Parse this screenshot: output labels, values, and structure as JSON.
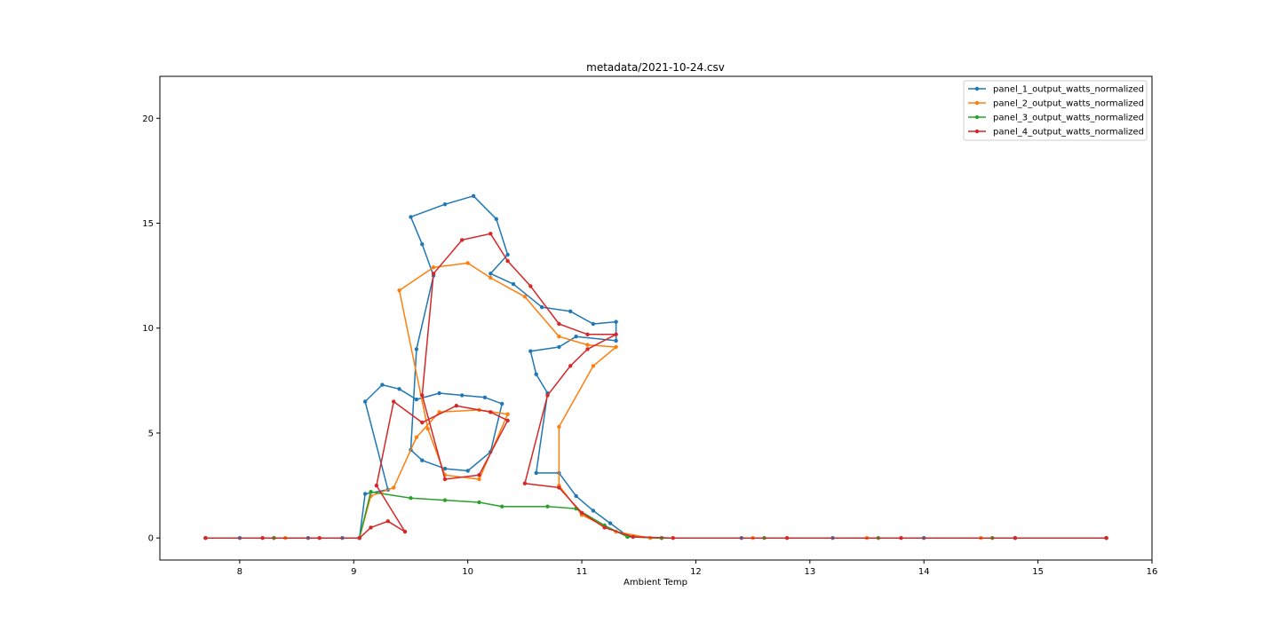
{
  "chart_data": {
    "type": "line",
    "title": "metadata/2021-10-24.csv",
    "xlabel": "Ambient Temp",
    "ylabel": "",
    "xlim": [
      7.3,
      16.0
    ],
    "ylim": [
      -1.05,
      22.0
    ],
    "xticks": [
      8,
      9,
      10,
      11,
      12,
      13,
      14,
      15,
      16
    ],
    "yticks": [
      0,
      5,
      10,
      15,
      20
    ],
    "grid": false,
    "legend_position": "top-right",
    "marker": "circle",
    "series": [
      {
        "name": "panel_1_output_watts_normalized",
        "color": "#1f77b4",
        "points": [
          [
            7.7,
            0
          ],
          [
            8.0,
            0
          ],
          [
            8.3,
            0
          ],
          [
            8.6,
            0
          ],
          [
            8.9,
            0
          ],
          [
            9.05,
            0
          ],
          [
            9.1,
            2.1
          ],
          [
            9.3,
            2.3
          ],
          [
            9.1,
            6.5
          ],
          [
            9.25,
            7.3
          ],
          [
            9.4,
            7.1
          ],
          [
            9.55,
            6.6
          ],
          [
            9.75,
            6.9
          ],
          [
            9.95,
            6.8
          ],
          [
            10.15,
            6.7
          ],
          [
            10.3,
            6.4
          ],
          [
            10.2,
            4.1
          ],
          [
            10.0,
            3.2
          ],
          [
            9.8,
            3.3
          ],
          [
            9.6,
            3.7
          ],
          [
            9.5,
            4.2
          ],
          [
            9.55,
            9.0
          ],
          [
            9.7,
            12.5
          ],
          [
            9.6,
            14.0
          ],
          [
            9.5,
            15.3
          ],
          [
            9.8,
            15.9
          ],
          [
            10.05,
            16.3
          ],
          [
            10.25,
            15.2
          ],
          [
            10.35,
            13.5
          ],
          [
            10.2,
            12.6
          ],
          [
            10.4,
            12.1
          ],
          [
            10.65,
            11.0
          ],
          [
            10.9,
            10.8
          ],
          [
            11.1,
            10.2
          ],
          [
            11.3,
            10.3
          ],
          [
            11.3,
            9.4
          ],
          [
            10.95,
            9.6
          ],
          [
            10.8,
            9.1
          ],
          [
            10.55,
            8.9
          ],
          [
            10.6,
            7.8
          ],
          [
            10.7,
            6.9
          ],
          [
            10.6,
            3.1
          ],
          [
            10.8,
            3.1
          ],
          [
            10.95,
            2.0
          ],
          [
            11.1,
            1.3
          ],
          [
            11.25,
            0.7
          ],
          [
            11.4,
            0.1
          ],
          [
            11.7,
            0
          ],
          [
            12.4,
            0
          ],
          [
            13.2,
            0
          ],
          [
            14.0,
            0
          ],
          [
            14.8,
            0
          ],
          [
            15.6,
            0
          ]
        ]
      },
      {
        "name": "panel_2_output_watts_normalized",
        "color": "#ff7f0e",
        "points": [
          [
            7.7,
            0
          ],
          [
            8.4,
            0
          ],
          [
            9.05,
            0
          ],
          [
            9.15,
            2.0
          ],
          [
            9.35,
            2.4
          ],
          [
            9.55,
            4.8
          ],
          [
            9.75,
            6.0
          ],
          [
            10.1,
            6.1
          ],
          [
            10.35,
            5.9
          ],
          [
            10.1,
            2.8
          ],
          [
            9.8,
            3.0
          ],
          [
            9.65,
            5.2
          ],
          [
            9.4,
            11.8
          ],
          [
            9.7,
            12.9
          ],
          [
            10.0,
            13.1
          ],
          [
            10.2,
            12.4
          ],
          [
            10.5,
            11.5
          ],
          [
            10.8,
            9.6
          ],
          [
            11.05,
            9.2
          ],
          [
            11.3,
            9.1
          ],
          [
            11.1,
            8.2
          ],
          [
            10.8,
            5.3
          ],
          [
            10.8,
            2.5
          ],
          [
            11.0,
            1.1
          ],
          [
            11.3,
            0.3
          ],
          [
            11.6,
            0
          ],
          [
            12.5,
            0
          ],
          [
            13.5,
            0
          ],
          [
            14.5,
            0
          ],
          [
            15.6,
            0
          ]
        ]
      },
      {
        "name": "panel_3_output_watts_normalized",
        "color": "#2ca02c",
        "points": [
          [
            7.7,
            0
          ],
          [
            8.3,
            0
          ],
          [
            9.05,
            0
          ],
          [
            9.15,
            2.2
          ],
          [
            9.5,
            1.9
          ],
          [
            9.8,
            1.8
          ],
          [
            10.1,
            1.7
          ],
          [
            10.3,
            1.5
          ],
          [
            10.7,
            1.5
          ],
          [
            10.95,
            1.4
          ],
          [
            11.2,
            0.6
          ],
          [
            11.4,
            0.05
          ],
          [
            11.7,
            0
          ],
          [
            12.6,
            0
          ],
          [
            13.6,
            0
          ],
          [
            14.6,
            0
          ],
          [
            15.6,
            0
          ]
        ]
      },
      {
        "name": "panel_4_output_watts_normalized",
        "color": "#d62728",
        "points": [
          [
            7.7,
            0
          ],
          [
            8.2,
            0
          ],
          [
            8.7,
            0
          ],
          [
            9.05,
            0
          ],
          [
            9.15,
            0.5
          ],
          [
            9.3,
            0.8
          ],
          [
            9.45,
            0.3
          ],
          [
            9.2,
            2.5
          ],
          [
            9.35,
            6.5
          ],
          [
            9.6,
            5.5
          ],
          [
            9.9,
            6.3
          ],
          [
            10.2,
            6.0
          ],
          [
            10.35,
            5.6
          ],
          [
            10.1,
            3.0
          ],
          [
            9.8,
            2.8
          ],
          [
            9.6,
            6.8
          ],
          [
            9.7,
            12.6
          ],
          [
            9.95,
            14.2
          ],
          [
            10.2,
            14.5
          ],
          [
            10.35,
            13.2
          ],
          [
            10.55,
            12.0
          ],
          [
            10.8,
            10.2
          ],
          [
            11.05,
            9.7
          ],
          [
            11.3,
            9.7
          ],
          [
            11.05,
            9.0
          ],
          [
            10.9,
            8.2
          ],
          [
            10.7,
            6.8
          ],
          [
            10.5,
            2.6
          ],
          [
            10.8,
            2.4
          ],
          [
            11.0,
            1.2
          ],
          [
            11.2,
            0.5
          ],
          [
            11.45,
            0.05
          ],
          [
            11.8,
            0
          ],
          [
            12.8,
            0
          ],
          [
            13.8,
            0
          ],
          [
            14.8,
            0
          ],
          [
            15.6,
            0
          ]
        ]
      }
    ]
  }
}
